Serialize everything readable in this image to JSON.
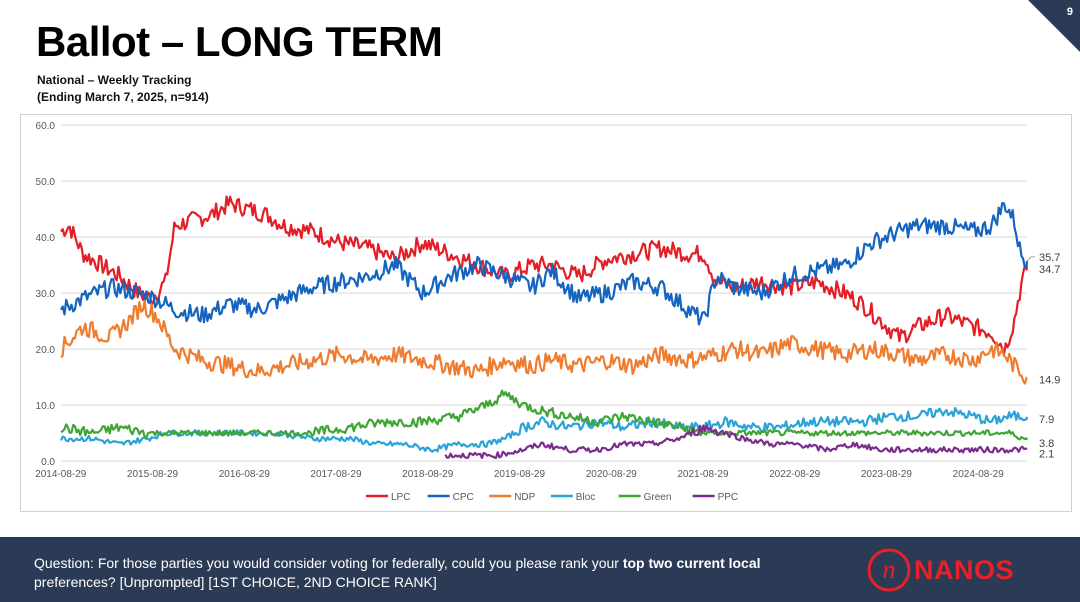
{
  "page_number": "9",
  "title": "Ballot – LONG TERM",
  "subtitle_1": "National – Weekly Tracking",
  "subtitle_2": "(Ending March 7, 2025, n=914)",
  "footer": {
    "question_prefix": "Question: For those parties you would consider voting for federally, could you please rank your ",
    "question_bold": "top two current local",
    "question_suffix": " preferences? [Unprompted] [1ST CHOICE, 2ND CHOICE RANK]",
    "logo_text": "NANOS",
    "logo_mark": "n"
  },
  "chart_data": {
    "type": "line",
    "title": "",
    "xlabel": "",
    "ylabel": "",
    "ylim": [
      0,
      60
    ],
    "yticks": [
      "60.0",
      "50.0",
      "40.0",
      "30.0",
      "20.0",
      "10.0",
      "0.0"
    ],
    "xlim": [
      2014.66,
      2025.19
    ],
    "xticks": [
      "2014-08-29",
      "2015-08-29",
      "2016-08-29",
      "2017-08-29",
      "2018-08-29",
      "2019-08-29",
      "2020-08-29",
      "2021-08-29",
      "2022-08-29",
      "2023-08-29",
      "2024-08-29"
    ],
    "grid": true,
    "legend_position": "bottom",
    "series": [
      {
        "name": "LPC",
        "color": "#e41e26",
        "x": [
          2014.66,
          2014.75,
          2014.9,
          2015.1,
          2015.3,
          2015.5,
          2015.65,
          2015.8,
          2015.9,
          2016.1,
          2016.3,
          2016.5,
          2016.7,
          2016.9,
          2017.1,
          2017.4,
          2017.7,
          2018.0,
          2018.3,
          2018.6,
          2018.9,
          2019.2,
          2019.5,
          2019.8,
          2020.0,
          2020.3,
          2020.6,
          2020.9,
          2021.2,
          2021.5,
          2021.67,
          2021.8,
          2022.0,
          2022.3,
          2022.6,
          2022.9,
          2023.2,
          2023.4,
          2023.6,
          2023.8,
          2024.0,
          2024.3,
          2024.6,
          2024.8,
          2024.95,
          2025.05,
          2025.12,
          2025.19
        ],
        "y": [
          41,
          42,
          37,
          35,
          33,
          30,
          29,
          32,
          42,
          43,
          44,
          46,
          45,
          44,
          42,
          41,
          39,
          38,
          36,
          39,
          37,
          35,
          33,
          35,
          35,
          33,
          36,
          37,
          38,
          37,
          37,
          32,
          31,
          32,
          31,
          32,
          30,
          28,
          25,
          22,
          24,
          26,
          24,
          23,
          20,
          25,
          31,
          34.7
        ]
      },
      {
        "name": "CPC",
        "color": "#1565c0",
        "x": [
          2014.66,
          2014.9,
          2015.2,
          2015.5,
          2015.7,
          2015.9,
          2016.2,
          2016.5,
          2016.8,
          2017.1,
          2017.4,
          2017.7,
          2018.0,
          2018.3,
          2018.6,
          2018.9,
          2019.2,
          2019.5,
          2019.8,
          2020.0,
          2020.3,
          2020.6,
          2020.9,
          2021.2,
          2021.5,
          2021.67,
          2021.8,
          2022.0,
          2022.3,
          2022.6,
          2022.9,
          2023.2,
          2023.5,
          2023.8,
          2024.0,
          2024.3,
          2024.6,
          2024.8,
          2024.95,
          2025.05,
          2025.12,
          2025.19
        ],
        "y": [
          27,
          29,
          31,
          30,
          29,
          27,
          26,
          28,
          27,
          29,
          31,
          32,
          33,
          35,
          30,
          33,
          35,
          33,
          31,
          34,
          29,
          30,
          32,
          31,
          27,
          25,
          33,
          31,
          30,
          33,
          34,
          35,
          39,
          41,
          42,
          42,
          41,
          42,
          46,
          43,
          37,
          35.7
        ]
      },
      {
        "name": "NDP",
        "color": "#ef7d31",
        "x": [
          2014.66,
          2014.9,
          2015.2,
          2015.4,
          2015.55,
          2015.7,
          2015.9,
          2016.2,
          2016.5,
          2016.8,
          2017.1,
          2017.4,
          2017.7,
          2018.0,
          2018.3,
          2018.6,
          2018.9,
          2019.2,
          2019.5,
          2019.8,
          2020.0,
          2020.3,
          2020.6,
          2020.9,
          2021.2,
          2021.5,
          2021.8,
          2022.0,
          2022.3,
          2022.6,
          2022.9,
          2023.2,
          2023.5,
          2023.8,
          2024.0,
          2024.3,
          2024.6,
          2024.8,
          2024.95,
          2025.05,
          2025.12,
          2025.19
        ],
        "y": [
          20,
          24,
          22,
          25,
          28,
          26,
          20,
          18,
          17,
          16,
          17,
          18,
          19,
          18,
          19,
          18,
          17,
          16,
          18,
          17,
          18,
          17,
          18,
          17,
          19,
          18,
          19,
          20,
          19,
          21,
          20,
          19,
          20,
          19,
          18,
          19,
          18,
          20,
          19,
          17,
          16,
          14.9
        ]
      },
      {
        "name": "Bloc",
        "color": "#29a3d9",
        "x": [
          2014.66,
          2015.0,
          2015.3,
          2015.6,
          2015.8,
          2016.2,
          2016.6,
          2017.0,
          2017.4,
          2017.8,
          2018.1,
          2018.4,
          2018.7,
          2019.0,
          2019.3,
          2019.5,
          2019.7,
          2019.9,
          2020.2,
          2020.5,
          2020.8,
          2021.1,
          2021.4,
          2021.67,
          2021.9,
          2022.2,
          2022.5,
          2022.8,
          2023.1,
          2023.4,
          2023.7,
          2024.0,
          2024.3,
          2024.6,
          2024.8,
          2025.0,
          2025.19
        ],
        "y": [
          4,
          4,
          3,
          4,
          5,
          5,
          5,
          5,
          4,
          4,
          3,
          3,
          2,
          3,
          3,
          4,
          6,
          7,
          6,
          7,
          6,
          7,
          6,
          6,
          7,
          6,
          6,
          7,
          7,
          7,
          8,
          8,
          9,
          8,
          7,
          8,
          7.9
        ]
      },
      {
        "name": "Green",
        "color": "#3fa535",
        "x": [
          2014.66,
          2015.0,
          2015.3,
          2015.6,
          2016.0,
          2016.5,
          2017.0,
          2017.4,
          2017.8,
          2018.2,
          2018.6,
          2019.0,
          2019.3,
          2019.5,
          2019.7,
          2019.9,
          2020.2,
          2020.5,
          2020.8,
          2021.1,
          2021.4,
          2021.67,
          2021.9,
          2022.2,
          2022.5,
          2022.8,
          2023.1,
          2023.4,
          2023.7,
          2024.0,
          2024.3,
          2024.6,
          2024.8,
          2025.0,
          2025.19
        ],
        "y": [
          6,
          5,
          6,
          5,
          5,
          5,
          5,
          5,
          6,
          7,
          7,
          8,
          10,
          12,
          10,
          9,
          8,
          7,
          8,
          7,
          6,
          5,
          5,
          5,
          5,
          5,
          5,
          5,
          5,
          5,
          5,
          5,
          5,
          5,
          3.8
        ]
      },
      {
        "name": "PPC",
        "color": "#7b2d8e",
        "x": [
          2018.85,
          2019.1,
          2019.4,
          2019.7,
          2019.9,
          2020.2,
          2020.5,
          2020.8,
          2021.1,
          2021.4,
          2021.67,
          2021.9,
          2022.1,
          2022.4,
          2022.7,
          2023.0,
          2023.3,
          2023.6,
          2023.9,
          2024.2,
          2024.5,
          2024.8,
          2025.0,
          2025.19
        ],
        "y": [
          1,
          1,
          1,
          2,
          3,
          2,
          2,
          3,
          3,
          4,
          6,
          5,
          4,
          3,
          3,
          2,
          3,
          2,
          2,
          2,
          2,
          2,
          2,
          2.1
        ]
      }
    ],
    "end_labels": [
      {
        "series": "CPC",
        "text": "35.7"
      },
      {
        "series": "LPC",
        "text": "34.7"
      },
      {
        "series": "NDP",
        "text": "14.9"
      },
      {
        "series": "Bloc",
        "text": "7.9"
      },
      {
        "series": "Green",
        "text": "3.8"
      },
      {
        "series": "PPC",
        "text": "2.1"
      }
    ]
  }
}
